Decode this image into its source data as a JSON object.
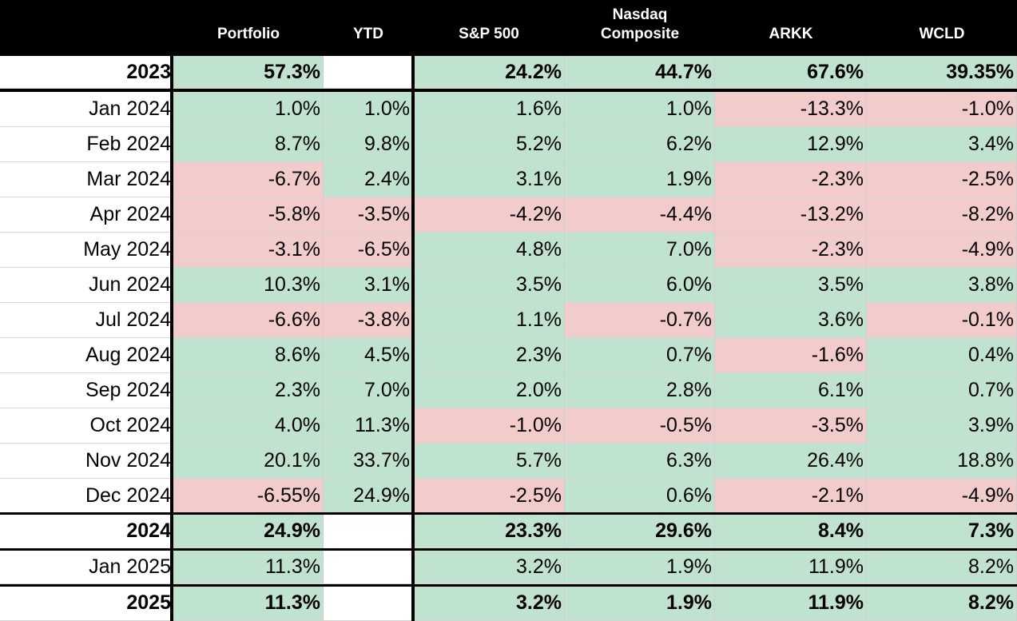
{
  "colors": {
    "positive": "#bfe3cf",
    "negative": "#f2cbcb",
    "header": "#000000"
  },
  "headers": [
    "",
    "Portfolio",
    "YTD",
    "S&P 500",
    "Nasdaq\nComposite",
    "ARKK",
    "WCLD"
  ],
  "rows": [
    {
      "label": "2023",
      "bold": true,
      "cells": [
        "57.3%",
        "",
        "24.2%",
        "44.7%",
        "67.6%",
        "39.35%"
      ],
      "signs": [
        "pos",
        "empty",
        "pos",
        "pos",
        "pos",
        "pos"
      ]
    },
    {
      "label": "Jan 2024",
      "bold": false,
      "cells": [
        "1.0%",
        "1.0%",
        "1.6%",
        "1.0%",
        "-13.3%",
        "-1.0%"
      ],
      "signs": [
        "pos",
        "pos",
        "pos",
        "pos",
        "neg",
        "neg"
      ]
    },
    {
      "label": "Feb 2024",
      "bold": false,
      "cells": [
        "8.7%",
        "9.8%",
        "5.2%",
        "6.2%",
        "12.9%",
        "3.4%"
      ],
      "signs": [
        "pos",
        "pos",
        "pos",
        "pos",
        "pos",
        "pos"
      ]
    },
    {
      "label": "Mar 2024",
      "bold": false,
      "cells": [
        "-6.7%",
        "2.4%",
        "3.1%",
        "1.9%",
        "-2.3%",
        "-2.5%"
      ],
      "signs": [
        "neg",
        "pos",
        "pos",
        "pos",
        "neg",
        "neg"
      ]
    },
    {
      "label": "Apr 2024",
      "bold": false,
      "cells": [
        "-5.8%",
        "-3.5%",
        "-4.2%",
        "-4.4%",
        "-13.2%",
        "-8.2%"
      ],
      "signs": [
        "neg",
        "neg",
        "neg",
        "neg",
        "neg",
        "neg"
      ]
    },
    {
      "label": "May 2024",
      "bold": false,
      "cells": [
        "-3.1%",
        "-6.5%",
        "4.8%",
        "7.0%",
        "-2.3%",
        "-4.9%"
      ],
      "signs": [
        "neg",
        "neg",
        "pos",
        "pos",
        "neg",
        "neg"
      ]
    },
    {
      "label": "Jun 2024",
      "bold": false,
      "cells": [
        "10.3%",
        "3.1%",
        "3.5%",
        "6.0%",
        "3.5%",
        "3.8%"
      ],
      "signs": [
        "pos",
        "pos",
        "pos",
        "pos",
        "pos",
        "pos"
      ]
    },
    {
      "label": "Jul 2024",
      "bold": false,
      "cells": [
        "-6.6%",
        "-3.8%",
        "1.1%",
        "-0.7%",
        "3.6%",
        "-0.1%"
      ],
      "signs": [
        "neg",
        "neg",
        "pos",
        "neg",
        "pos",
        "neg"
      ]
    },
    {
      "label": "Aug 2024",
      "bold": false,
      "cells": [
        "8.6%",
        "4.5%",
        "2.3%",
        "0.7%",
        "-1.6%",
        "0.4%"
      ],
      "signs": [
        "pos",
        "pos",
        "pos",
        "pos",
        "neg",
        "pos"
      ]
    },
    {
      "label": "Sep 2024",
      "bold": false,
      "cells": [
        "2.3%",
        "7.0%",
        "2.0%",
        "2.8%",
        "6.1%",
        "0.7%"
      ],
      "signs": [
        "pos",
        "pos",
        "pos",
        "pos",
        "pos",
        "pos"
      ]
    },
    {
      "label": "Oct 2024",
      "bold": false,
      "cells": [
        "4.0%",
        "11.3%",
        "-1.0%",
        "-0.5%",
        "-3.5%",
        "3.9%"
      ],
      "signs": [
        "pos",
        "pos",
        "neg",
        "neg",
        "neg",
        "pos"
      ]
    },
    {
      "label": "Nov 2024",
      "bold": false,
      "cells": [
        "20.1%",
        "33.7%",
        "5.7%",
        "6.3%",
        "26.4%",
        "18.8%"
      ],
      "signs": [
        "pos",
        "pos",
        "pos",
        "pos",
        "pos",
        "pos"
      ]
    },
    {
      "label": "Dec 2024",
      "bold": false,
      "cells": [
        "-6.55%",
        "24.9%",
        "-2.5%",
        "0.6%",
        "-2.1%",
        "-4.9%"
      ],
      "signs": [
        "neg",
        "pos",
        "neg",
        "pos",
        "neg",
        "neg"
      ]
    },
    {
      "label": "2024",
      "bold": true,
      "cells": [
        "24.9%",
        "",
        "23.3%",
        "29.6%",
        "8.4%",
        "7.3%"
      ],
      "signs": [
        "pos",
        "empty",
        "pos",
        "pos",
        "pos",
        "pos"
      ]
    },
    {
      "label": "Jan 2025",
      "bold": false,
      "cells": [
        "11.3%",
        "",
        "3.2%",
        "1.9%",
        "11.9%",
        "8.2%"
      ],
      "signs": [
        "pos",
        "empty",
        "pos",
        "pos",
        "pos",
        "pos"
      ]
    },
    {
      "label": "2025",
      "bold": true,
      "cells": [
        "11.3%",
        "",
        "3.2%",
        "1.9%",
        "11.9%",
        "8.2%"
      ],
      "signs": [
        "pos",
        "empty",
        "pos",
        "pos",
        "pos",
        "pos"
      ]
    }
  ]
}
